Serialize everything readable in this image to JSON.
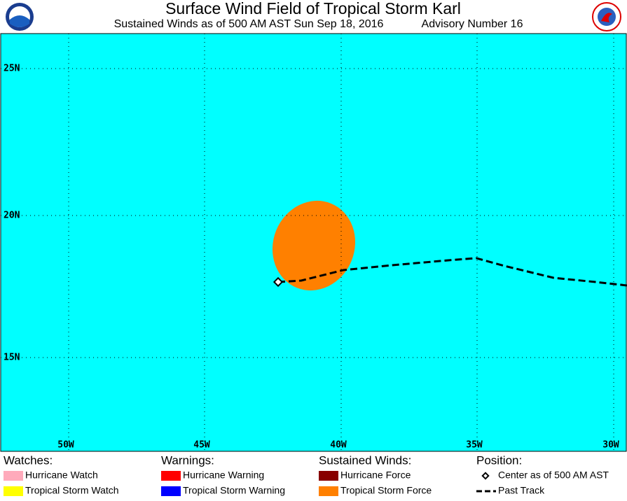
{
  "header": {
    "title": "Surface Wind Field of Tropical Storm Karl",
    "subtitle": "Sustained Winds as of 500 AM AST Sun Sep 18, 2016",
    "advisory": "Advisory Number 16"
  },
  "map": {
    "lat_labels": [
      "25N",
      "20N",
      "15N"
    ],
    "lon_labels": [
      "50W",
      "45W",
      "40W",
      "35W",
      "30W"
    ]
  },
  "legend": [
    {
      "heading": "Watches:",
      "items": [
        {
          "label": "Hurricane Watch",
          "color": "#ffaabb"
        },
        {
          "label": "Tropical Storm Watch",
          "color": "#ffff00"
        }
      ]
    },
    {
      "heading": "Warnings:",
      "items": [
        {
          "label": "Hurricane Warning",
          "color": "#ff0000"
        },
        {
          "label": "Tropical Storm Warning",
          "color": "#0000ff"
        }
      ]
    },
    {
      "heading": "Sustained Winds:",
      "items": [
        {
          "label": "Hurricane Force",
          "color": "#880000"
        },
        {
          "label": "Tropical Storm Force",
          "color": "#ff8000"
        }
      ]
    },
    {
      "heading": "Position:",
      "items": [
        {
          "label": "Center as of 500 AM AST"
        },
        {
          "label": "Past Track"
        }
      ]
    }
  ]
}
